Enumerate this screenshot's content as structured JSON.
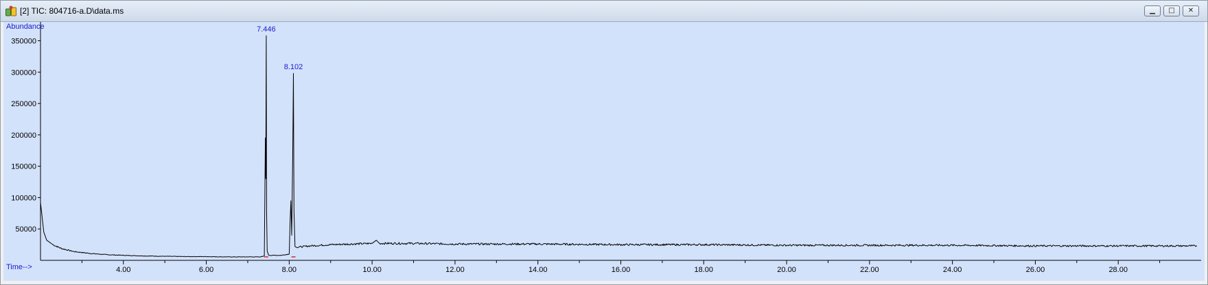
{
  "window": {
    "title": "[2] TIC: 804716-a.D\\data.ms",
    "icon": "chromatogram-app-icon",
    "controls": {
      "minimize_icon": "minimize-icon",
      "maximize_icon": "maximize-icon",
      "close_icon": "close-icon"
    }
  },
  "colors": {
    "plot_bg": "#d3e2fb",
    "trace": "#000000",
    "label": "#1a1acc",
    "baseline_marker": "#cc2a2a"
  },
  "chart_data": {
    "type": "line",
    "ylabel": "Abundance",
    "xlabel": "Time-->",
    "xlim": [
      2.0,
      30.0
    ],
    "ylim": [
      0,
      380000
    ],
    "x_ticks": [
      "4.00",
      "6.00",
      "8.00",
      "10.00",
      "12.00",
      "14.00",
      "16.00",
      "18.00",
      "20.00",
      "22.00",
      "24.00",
      "26.00",
      "28.00"
    ],
    "y_ticks": [
      "50000",
      "100000",
      "150000",
      "200000",
      "250000",
      "300000",
      "350000"
    ],
    "peak_labels": [
      {
        "label": "7.446",
        "x": 7.446,
        "y": 358000
      },
      {
        "label": "8.102",
        "x": 8.102,
        "y": 298000
      }
    ],
    "series": [
      {
        "x": [
          2.0,
          2.03,
          2.08,
          2.15,
          2.3,
          2.5,
          2.8,
          3.2,
          3.6,
          4.0,
          4.5,
          5.0,
          5.5,
          6.0,
          6.5,
          7.0,
          7.3,
          7.4,
          7.425,
          7.435,
          7.446,
          7.455,
          7.47,
          7.5,
          7.8,
          8.0,
          8.02,
          8.04,
          8.06,
          8.085,
          8.102,
          8.115,
          8.14,
          8.2,
          8.5,
          9.0,
          9.5,
          10.0,
          10.1,
          10.2,
          11.0,
          12.0,
          14.0,
          16.0,
          18.0,
          20.0,
          22.0,
          24.0,
          26.0,
          28.0,
          29.9
        ],
        "y": [
          92000,
          75000,
          45000,
          32000,
          25000,
          19000,
          14000,
          11000,
          9000,
          8000,
          7000,
          6500,
          6000,
          6000,
          5500,
          5500,
          5500,
          7000,
          195000,
          130000,
          358000,
          80000,
          15000,
          8000,
          8000,
          10000,
          60000,
          95000,
          40000,
          170000,
          298000,
          80000,
          22000,
          21000,
          23000,
          25000,
          26000,
          27000,
          32000,
          27000,
          27000,
          26000,
          26000,
          25000,
          25000,
          24000,
          24000,
          24000,
          23000,
          23000,
          23000
        ]
      }
    ]
  }
}
